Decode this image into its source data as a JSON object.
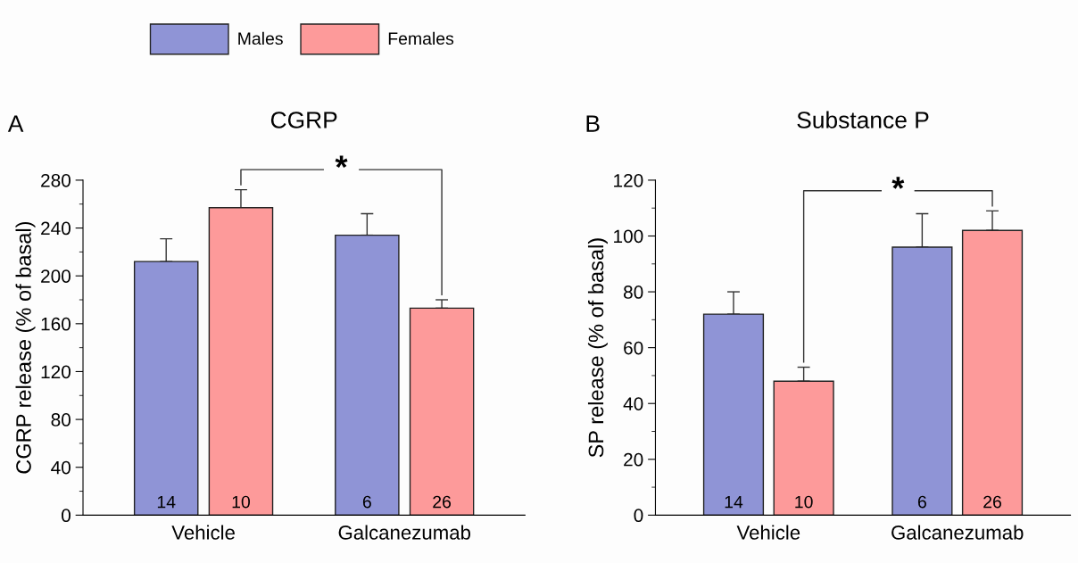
{
  "chart_data": [
    {
      "type": "bar",
      "title": "CGRP",
      "ylabel": "CGRP release (% of basal)",
      "categories": [
        "Vehicle",
        "Galcanezumab"
      ],
      "ylim": [
        0,
        280
      ],
      "yticks": [
        0,
        40,
        80,
        120,
        160,
        200,
        240,
        280
      ],
      "legend": "top",
      "grid": false,
      "series": [
        {
          "name": "Males",
          "color": "#8f94d6",
          "values": [
            212,
            234
          ],
          "errors": [
            [
              212,
              231
            ],
            [
              234,
              252
            ]
          ]
        },
        {
          "name": "Females",
          "color": "#fd9a9a",
          "values": [
            257,
            173
          ],
          "errors": [
            [
              257,
              272
            ],
            [
              173,
              180
            ]
          ]
        }
      ],
      "annotations": [
        "A",
        "14",
        "6",
        "10",
        "26",
        "*"
      ]
    },
    {
      "type": "bar",
      "title": "Substance P",
      "ylabel": "SP release (% of basal)",
      "categories": [
        "Vehicle",
        "Galcanezumab"
      ],
      "ylim": [
        0,
        120
      ],
      "yticks": [
        0,
        20,
        40,
        60,
        80,
        100,
        120
      ],
      "grid": false,
      "series": [
        {
          "color": "#8f94d6",
          "values": [
            72,
            96
          ],
          "errors": [
            [
              72,
              80
            ],
            [
              96,
              108
            ]
          ]
        },
        {
          "color": "#fd9a9a",
          "values": [
            48,
            102
          ],
          "errors": [
            [
              48,
              53
            ],
            [
              102,
              109
            ]
          ]
        }
      ],
      "annotations": [
        "B",
        "14",
        "6",
        "10",
        "26",
        "*"
      ]
    }
  ]
}
